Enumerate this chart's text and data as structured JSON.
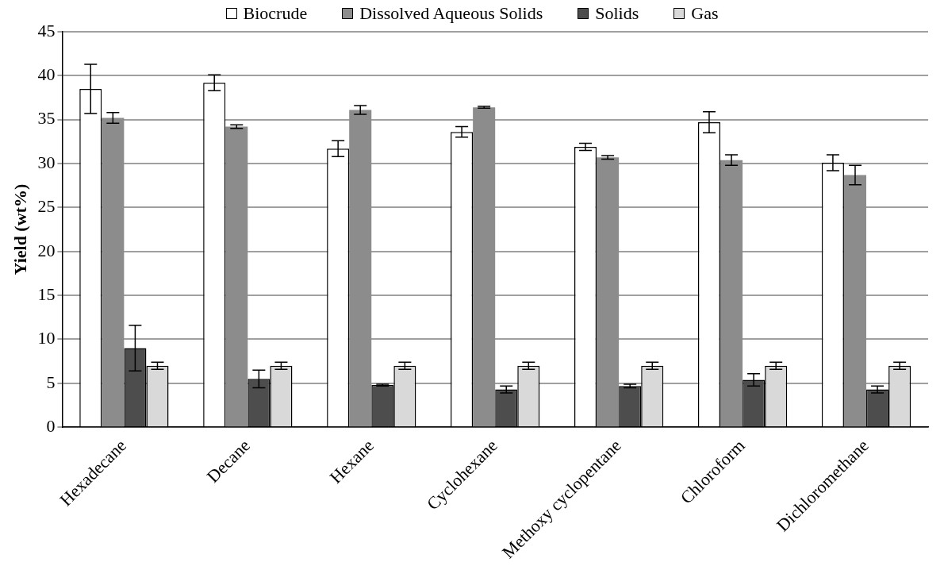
{
  "chart_data": {
    "type": "bar",
    "ylabel": "Yield (wt%)",
    "categories": [
      "Hexadecane",
      "Decane",
      "Hexane",
      "Cyclohexane",
      "Methoxy cyclopentane",
      "Chloroform",
      "Dichloromethane"
    ],
    "series": [
      {
        "name": "Biocrude",
        "color": "#ffffff",
        "values": [
          38.5,
          39.2,
          31.7,
          33.6,
          31.9,
          34.7,
          30.1
        ],
        "errors": [
          2.8,
          0.9,
          0.9,
          0.6,
          0.4,
          1.2,
          0.9
        ]
      },
      {
        "name": "Dissolved Aqueous Solids",
        "color": "#8c8c8c",
        "values": [
          35.2,
          34.2,
          36.1,
          36.4,
          30.7,
          30.4,
          28.7
        ],
        "errors": [
          0.6,
          0.2,
          0.5,
          0.1,
          0.2,
          0.6,
          1.1
        ]
      },
      {
        "name": "Solids",
        "color": "#4d4d4d",
        "values": [
          9.0,
          5.5,
          4.8,
          4.3,
          4.7,
          5.4,
          4.3
        ],
        "errors": [
          2.6,
          1.0,
          0.1,
          0.4,
          0.2,
          0.7,
          0.4
        ]
      },
      {
        "name": "Gas",
        "color": "#d9d9d9",
        "values": [
          7.0,
          7.0,
          7.0,
          7.0,
          7.0,
          7.0,
          7.0
        ],
        "errors": [
          0.4,
          0.4,
          0.4,
          0.4,
          0.4,
          0.4,
          0.4
        ]
      }
    ],
    "ylim": [
      0,
      45
    ],
    "yticks": [
      0,
      5,
      10,
      15,
      20,
      25,
      30,
      35,
      40,
      45
    ],
    "grid": "y",
    "legend": "top"
  }
}
